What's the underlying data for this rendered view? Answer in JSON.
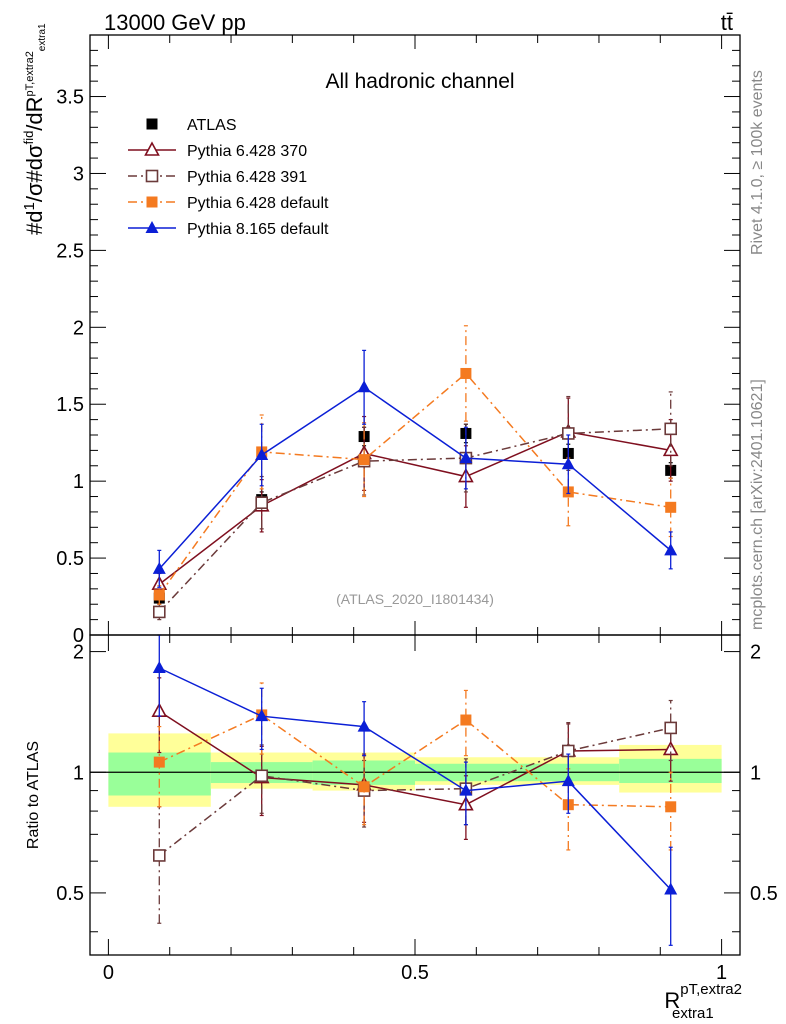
{
  "header": {
    "energy_label": "13000 GeV pp",
    "process_label": "tt̄",
    "rivet_label": "Rivet 4.1.0, ≥ 100k events",
    "site_label": "mcplots.cern.ch [arXiv:2401.10621]"
  },
  "colors": {
    "atlas": "#000000",
    "py6_370": "#7f0f1f",
    "py6_391": "#6b3a3a",
    "py6_default": "#f47a20",
    "py8_default": "#0b1fd6",
    "band_inner": "#99ff99",
    "band_outer": "#ffff99"
  },
  "chart_data": [
    {
      "type": "scatter",
      "title": "All hadronic channel",
      "analysis_tag": "(ATLAS_2020_I1801434)",
      "ylabel": "#d1/σ#dσ^fid/dR^{pT,extra2}_{extra1}",
      "ylim": [
        0,
        3.9
      ],
      "xlim": [
        -0.03,
        1.03
      ],
      "yticks": [
        "0",
        "0.5",
        "1",
        "1.5",
        "2",
        "2.5",
        "3",
        "3.5"
      ],
      "x": [
        0.083,
        0.25,
        0.417,
        0.583,
        0.75,
        0.917
      ],
      "legend_position": "top-left",
      "series": [
        {
          "name": "ATLAS",
          "marker": "square-filled",
          "color_key": "atlas",
          "values": [
            0.24,
            0.88,
            1.29,
            1.31,
            1.18,
            1.07
          ],
          "errors": [
            0.03,
            0.05,
            0.06,
            0.06,
            0.06,
            0.05
          ],
          "line": "none"
        },
        {
          "name": "Pythia 6.428 370",
          "marker": "triangle-open",
          "color_key": "py6_370",
          "values": [
            0.33,
            0.84,
            1.18,
            1.03,
            1.32,
            1.2
          ],
          "errors": [
            0.07,
            0.17,
            0.24,
            0.2,
            0.22,
            0.2
          ],
          "line": "solid"
        },
        {
          "name": "Pythia 6.428 391",
          "marker": "square-open",
          "color_key": "py6_391",
          "values": [
            0.15,
            0.86,
            1.13,
            1.15,
            1.31,
            1.34
          ],
          "errors": [
            0.05,
            0.17,
            0.22,
            0.22,
            0.24,
            0.24
          ],
          "line": "dashdot"
        },
        {
          "name": "Pythia 6.428 default",
          "marker": "square-filled",
          "color_key": "py6_default",
          "values": [
            0.26,
            1.19,
            1.14,
            1.7,
            0.93,
            0.83
          ],
          "errors": [
            0.06,
            0.24,
            0.24,
            0.31,
            0.22,
            0.19
          ],
          "line": "dashdot"
        },
        {
          "name": "Pythia 8.165 default",
          "marker": "triangle-filled",
          "color_key": "py8_default",
          "values": [
            0.43,
            1.17,
            1.61,
            1.15,
            1.11,
            0.55
          ],
          "errors": [
            0.12,
            0.2,
            0.24,
            0.2,
            0.19,
            0.12
          ],
          "line": "solid"
        }
      ]
    },
    {
      "type": "scatter",
      "ylabel": "Ratio to ATLAS",
      "xlabel": "R^{pT,extra2}_{extra1}",
      "ylim": [
        0.35,
        2.2
      ],
      "xlim": [
        -0.03,
        1.03
      ],
      "yticks": [
        "0.5",
        "1",
        "2"
      ],
      "xticks": [
        "0",
        "0.5",
        "1"
      ],
      "x": [
        0.083,
        0.25,
        0.417,
        0.583,
        0.75,
        0.917
      ],
      "bins": [
        [
          0,
          0.167
        ],
        [
          0.167,
          0.333
        ],
        [
          0.333,
          0.5
        ],
        [
          0.5,
          0.667
        ],
        [
          0.667,
          0.833
        ],
        [
          0.833,
          1.0
        ]
      ],
      "band_inner": [
        [
          0.875,
          1.12
        ],
        [
          0.94,
          1.06
        ],
        [
          0.93,
          1.07
        ],
        [
          0.95,
          1.05
        ],
        [
          0.95,
          1.05
        ],
        [
          0.94,
          1.08
        ]
      ],
      "band_outer": [
        [
          0.82,
          1.25
        ],
        [
          0.91,
          1.12
        ],
        [
          0.9,
          1.12
        ],
        [
          0.93,
          1.09
        ],
        [
          0.93,
          1.09
        ],
        [
          0.89,
          1.17
        ]
      ],
      "series": [
        {
          "name": "Pythia 6.428 370",
          "marker": "triangle-open",
          "color_key": "py6_370",
          "values": [
            1.42,
            0.97,
            0.93,
            0.83,
            1.13,
            1.14
          ],
          "errors": [
            0.3,
            0.19,
            0.18,
            0.15,
            0.19,
            0.19
          ],
          "line": "solid"
        },
        {
          "name": "Pythia 6.428 391",
          "marker": "square-open",
          "color_key": "py6_391",
          "values": [
            0.62,
            0.98,
            0.9,
            0.91,
            1.13,
            1.29
          ],
          "errors": [
            0.2,
            0.19,
            0.17,
            0.17,
            0.2,
            0.22
          ],
          "line": "dashdot"
        },
        {
          "name": "Pythia 6.428 default",
          "marker": "square-filled",
          "color_key": "py6_default",
          "values": [
            1.06,
            1.39,
            0.92,
            1.35,
            0.83,
            0.82
          ],
          "errors": [
            0.24,
            0.28,
            0.18,
            0.25,
            0.19,
            0.18
          ],
          "line": "dashdot"
        },
        {
          "name": "Pythia 8.165 default",
          "marker": "triangle-filled",
          "color_key": "py8_default",
          "values": [
            1.82,
            1.38,
            1.3,
            0.9,
            0.95,
            0.51
          ],
          "errors": [
            0.44,
            0.24,
            0.2,
            0.16,
            0.16,
            0.14
          ],
          "line": "solid"
        }
      ]
    }
  ]
}
